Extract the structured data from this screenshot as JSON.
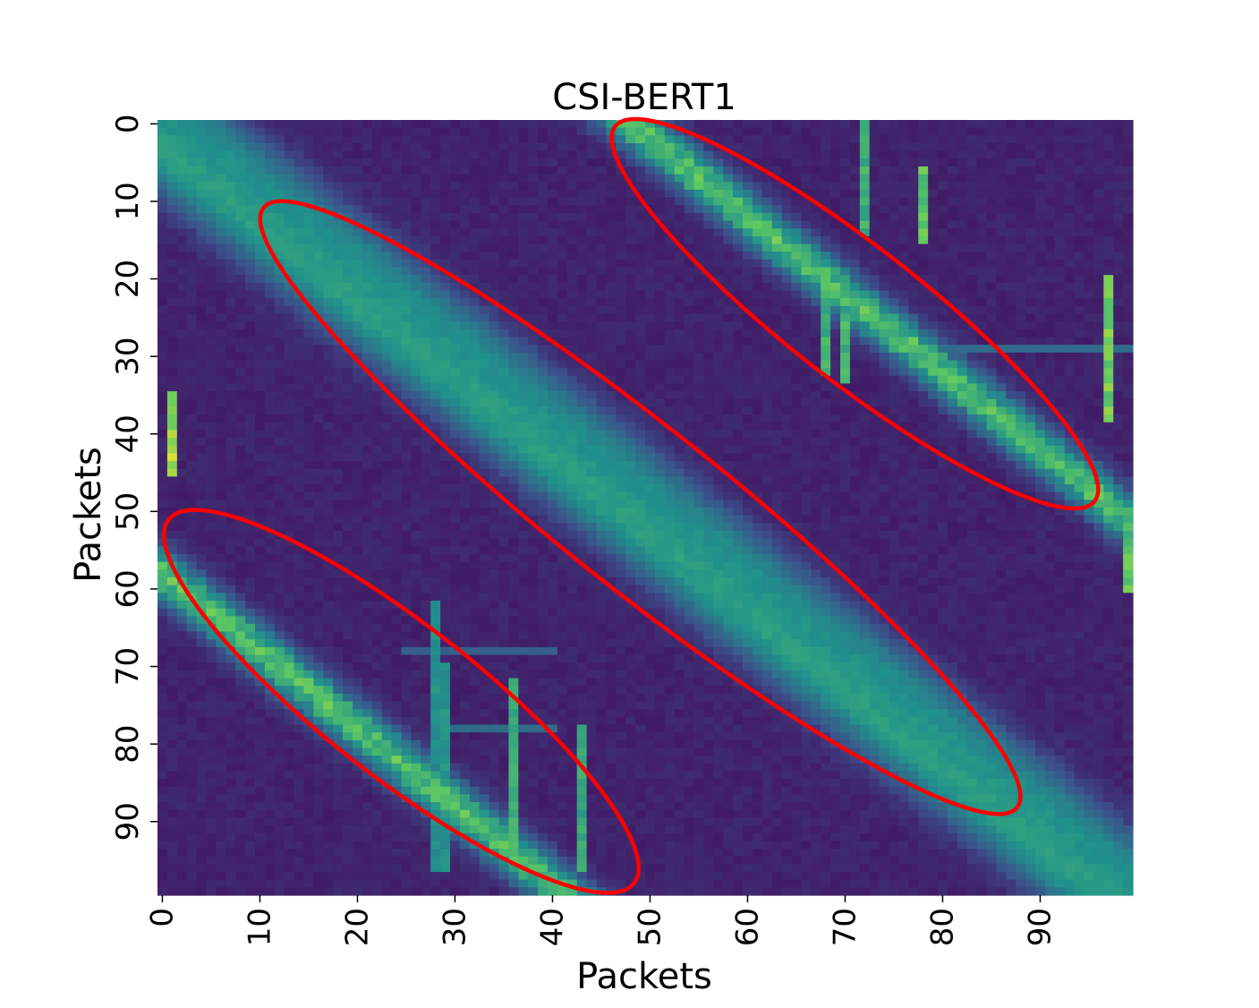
{
  "chart_data": {
    "type": "heatmap",
    "title": "CSI-BERT1",
    "xlabel": "Packets",
    "ylabel": "Packets",
    "n_rows": 100,
    "n_cols": 100,
    "x_ticks": [
      0,
      10,
      20,
      30,
      40,
      50,
      60,
      70,
      80,
      90
    ],
    "y_ticks": [
      0,
      10,
      20,
      30,
      40,
      50,
      60,
      70,
      80,
      90
    ],
    "colormap": "viridis",
    "colorbar": false,
    "structure": {
      "main_diagonal_bands": [
        {
          "row_minus_col": 4,
          "width": 4.0,
          "peak": 0.42
        },
        {
          "row_minus_col": -4,
          "width": 3.5,
          "peak": 0.3
        }
      ],
      "upper_band": {
        "col_minus_row": 48,
        "width": 2.5,
        "peak": 0.7
      },
      "lower_band": {
        "row_minus_col": 58,
        "width": 2.5,
        "peak": 0.7
      },
      "vertical_stripes": [
        {
          "col": 1,
          "rows": [
            35,
            45
          ],
          "value": 0.95
        },
        {
          "col": 28,
          "rows": [
            62,
            96
          ],
          "value": 0.55
        },
        {
          "col": 29,
          "rows": [
            70,
            96
          ],
          "value": 0.55
        },
        {
          "col": 36,
          "rows": [
            72,
            96
          ],
          "value": 0.7
        },
        {
          "col": 43,
          "rows": [
            78,
            96
          ],
          "value": 0.65
        },
        {
          "col": 68,
          "rows": [
            20,
            32
          ],
          "value": 0.7
        },
        {
          "col": 70,
          "rows": [
            25,
            33
          ],
          "value": 0.72
        },
        {
          "col": 72,
          "rows": [
            0,
            14
          ],
          "value": 0.7
        },
        {
          "col": 78,
          "rows": [
            6,
            15
          ],
          "value": 0.8
        },
        {
          "col": 97,
          "rows": [
            20,
            38
          ],
          "value": 0.85
        },
        {
          "col": 99,
          "rows": [
            54,
            60
          ],
          "value": 0.8
        }
      ],
      "horizontal_stripes": [
        {
          "row": 29,
          "cols": [
            79,
            99
          ],
          "value": 0.35
        },
        {
          "row": 68,
          "cols": [
            25,
            40
          ],
          "value": 0.3
        },
        {
          "row": 78,
          "cols": [
            30,
            40
          ],
          "value": 0.35
        }
      ]
    },
    "annotations": [
      {
        "shape": "ellipse",
        "color": "#ff0000",
        "center": [
          49.5,
          50
        ],
        "label": ""
      },
      {
        "shape": "ellipse",
        "color": "#ff0000",
        "center": [
          71.5,
          25
        ],
        "label": ""
      },
      {
        "shape": "ellipse",
        "color": "#ff0000",
        "center": [
          25,
          75
        ],
        "label": ""
      }
    ]
  },
  "colors": {
    "annotation": "#ff0000",
    "background": "#ffffff"
  }
}
